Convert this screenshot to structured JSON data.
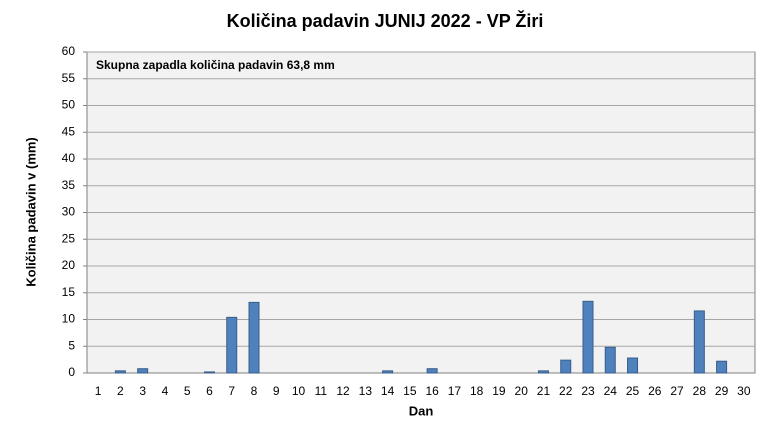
{
  "chart_data": {
    "type": "bar",
    "title": "Količina  padavin JUNIJ 2022 - VP Žiri",
    "annotation": "Skupna zapadla količina padavin 63,8 mm",
    "x_label": "Dan",
    "y_label": "Količina padavin v  (mm)",
    "categories": [
      "1",
      "2",
      "3",
      "4",
      "5",
      "6",
      "7",
      "8",
      "9",
      "10",
      "11",
      "12",
      "13",
      "14",
      "15",
      "16",
      "17",
      "18",
      "19",
      "20",
      "21",
      "22",
      "23",
      "24",
      "25",
      "26",
      "27",
      "28",
      "29",
      "30"
    ],
    "values": [
      0,
      0.4,
      0.8,
      0,
      0,
      0.2,
      10.4,
      13.2,
      0,
      0,
      0,
      0,
      0,
      0.4,
      0,
      0.8,
      0,
      0,
      0,
      0,
      0.4,
      2.4,
      13.4,
      4.8,
      2.8,
      0,
      0,
      11.6,
      2.2,
      0
    ],
    "color": "#4f81bd",
    "ylim": [
      0,
      60
    ],
    "yticks": [
      0,
      5,
      10,
      15,
      20,
      25,
      30,
      35,
      40,
      45,
      50,
      55,
      60
    ],
    "grid": true
  }
}
